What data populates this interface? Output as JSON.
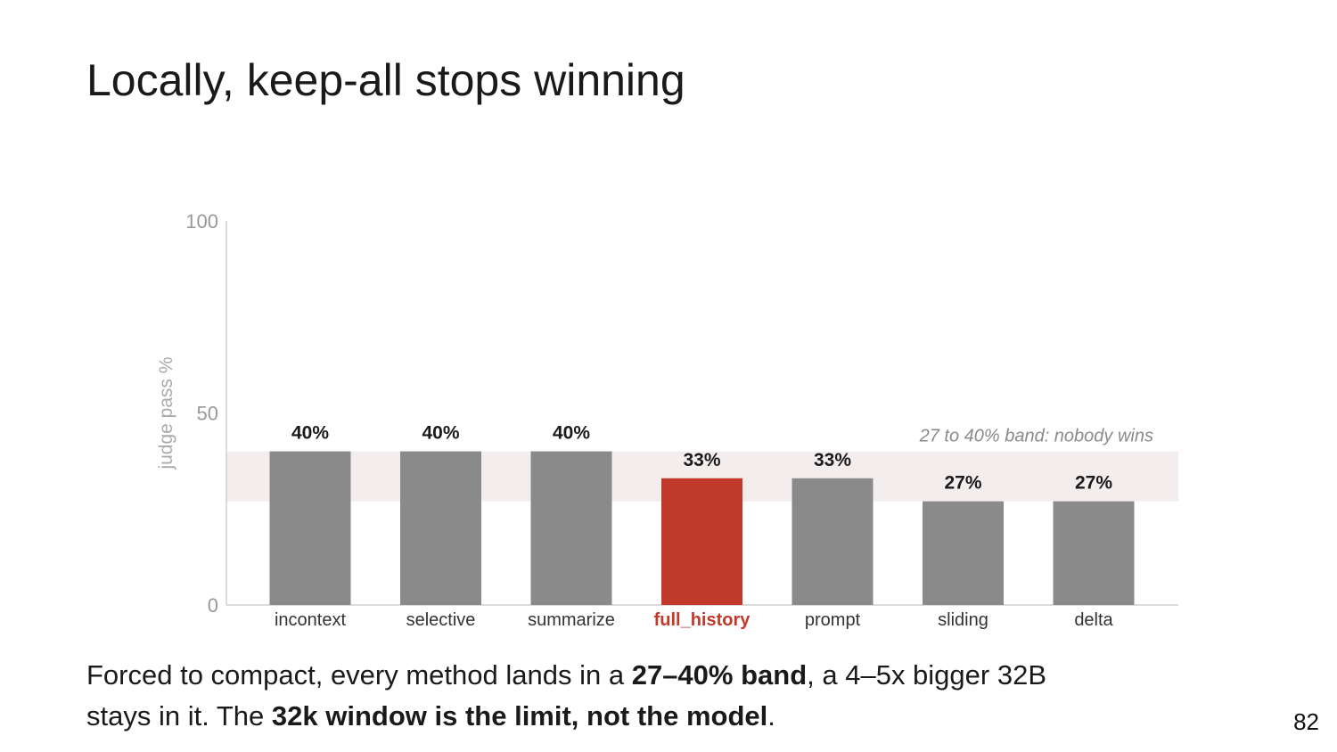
{
  "slide": {
    "title": "Locally, keep-all stops winning",
    "page_number": "82"
  },
  "caption": {
    "line1_a": "Forced to compact, every method lands in a ",
    "line1_b": "27–40% band",
    "line1_c": ", a 4–5x bigger 32B",
    "line2_a": "stays in it. The ",
    "line2_b": "32k window is the limit, not the model",
    "line2_c": "."
  },
  "colors": {
    "bar": "#8a8a8a",
    "highlight": "#c0392b",
    "band": "#f3eded",
    "axis": "#999999"
  },
  "chart_data": {
    "type": "bar",
    "categories": [
      "incontext",
      "selective",
      "summarize",
      "full_history",
      "prompt",
      "sliding",
      "delta"
    ],
    "values": [
      40,
      40,
      40,
      33,
      33,
      27,
      27
    ],
    "value_labels": [
      "40%",
      "40%",
      "40%",
      "33%",
      "33%",
      "27%",
      "27%"
    ],
    "highlight_category": "full_history",
    "ylabel": "judge pass %",
    "ylim": [
      0,
      100
    ],
    "yticks": [
      0,
      50,
      100
    ],
    "band": {
      "from": 27,
      "to": 40,
      "label": "27 to 40% band: nobody wins"
    },
    "grid": false,
    "legend": "none"
  }
}
